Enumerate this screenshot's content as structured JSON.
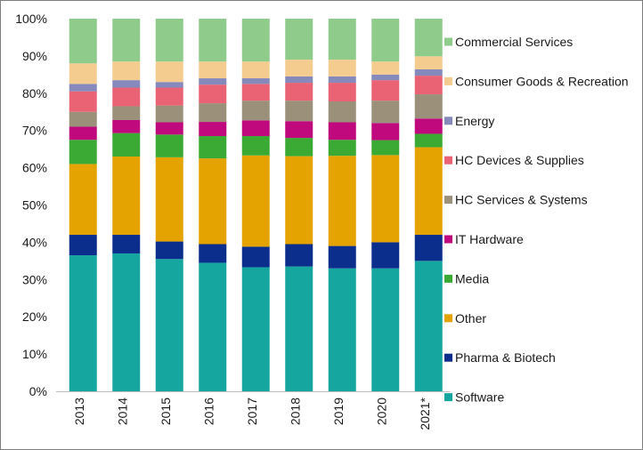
{
  "chart_data": {
    "type": "bar",
    "stacked": true,
    "normalized": true,
    "categories": [
      "2013",
      "2014",
      "2015",
      "2016",
      "2017",
      "2018",
      "2019",
      "2020",
      "2021*"
    ],
    "y_ticks": [
      "0%",
      "10%",
      "20%",
      "30%",
      "40%",
      "50%",
      "60%",
      "70%",
      "80%",
      "90%",
      "100%"
    ],
    "ylim": [
      0,
      100
    ],
    "grid": false,
    "legend_position": "right",
    "series": [
      {
        "name": "Software",
        "color": "#16a6a0",
        "values": [
          36.5,
          37.0,
          35.5,
          34.5,
          33.3,
          33.5,
          33.0,
          33.0,
          35.0
        ]
      },
      {
        "name": "Pharma & Biotech",
        "color": "#0b2d8c",
        "values": [
          5.5,
          5.0,
          4.7,
          5.0,
          5.5,
          6.0,
          6.0,
          7.0,
          7.0
        ]
      },
      {
        "name": "Other",
        "color": "#e5a300",
        "values": [
          19.0,
          21.0,
          22.6,
          23.0,
          24.5,
          23.6,
          24.2,
          23.4,
          23.5
        ]
      },
      {
        "name": "Media",
        "color": "#3aaa35",
        "values": [
          6.5,
          6.3,
          6.1,
          6.0,
          5.2,
          4.9,
          4.3,
          4.0,
          3.6
        ]
      },
      {
        "name": "IT Hardware",
        "color": "#c0097c",
        "values": [
          3.5,
          3.5,
          3.3,
          3.8,
          4.2,
          4.5,
          4.7,
          4.6,
          4.1
        ]
      },
      {
        "name": "HC Services & Systems",
        "color": "#9b9079",
        "values": [
          4.0,
          3.7,
          4.5,
          5.0,
          5.3,
          5.5,
          5.6,
          6.0,
          6.5
        ]
      },
      {
        "name": "HC Devices & Supplies",
        "color": "#e96374",
        "values": [
          5.5,
          5.0,
          4.8,
          5.0,
          4.5,
          4.8,
          5.0,
          5.5,
          5.0
        ]
      },
      {
        "name": "Energy",
        "color": "#8589bb",
        "values": [
          2.0,
          2.0,
          1.5,
          1.7,
          1.5,
          1.7,
          1.7,
          1.5,
          1.7
        ]
      },
      {
        "name": "Consumer Goods & Recreation",
        "color": "#f5cc90",
        "values": [
          5.5,
          5.0,
          5.5,
          4.5,
          4.5,
          4.5,
          4.5,
          3.5,
          3.5
        ]
      },
      {
        "name": "Commercial Services",
        "color": "#8fcc8c",
        "values": [
          12.0,
          11.5,
          11.5,
          11.5,
          11.5,
          11.0,
          11.0,
          11.5,
          10.1
        ]
      }
    ]
  }
}
